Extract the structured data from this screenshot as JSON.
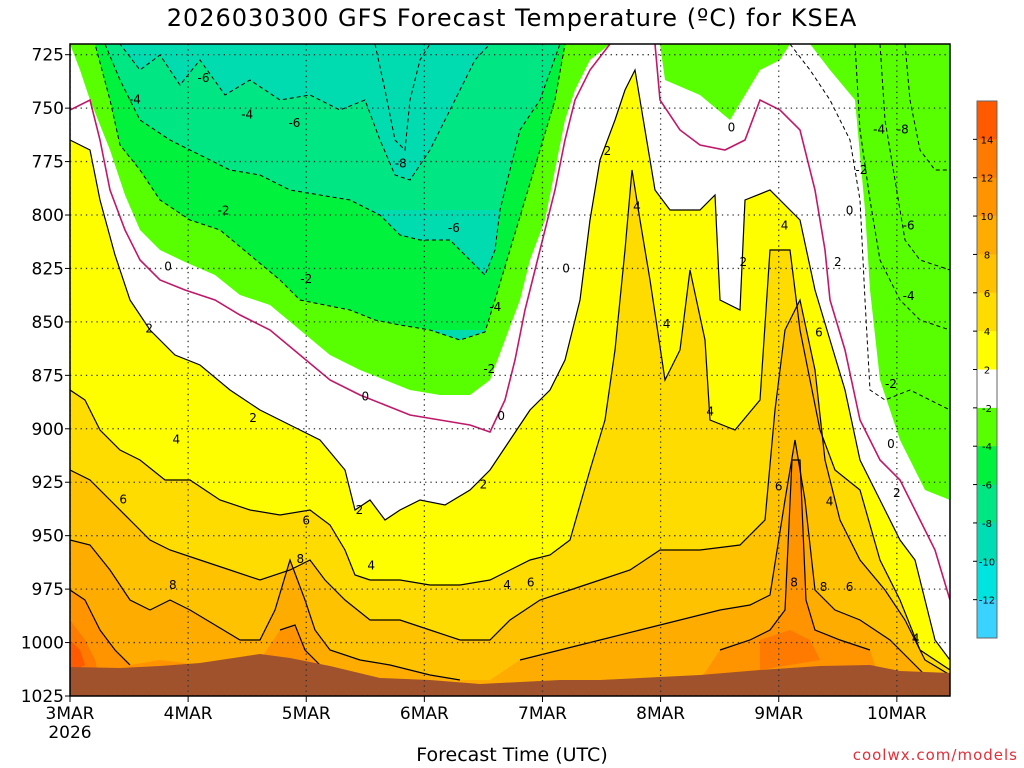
{
  "title": "2026030300 GFS Forecast Temperature (ºC) for KSEA",
  "xlabel": "Forecast Time (UTC)",
  "credit": "coolwx.com/models",
  "chart_data": {
    "type": "heatmap",
    "y_axis": {
      "ticks": [
        725,
        750,
        775,
        800,
        825,
        850,
        875,
        900,
        925,
        950,
        975,
        1000,
        1025
      ],
      "ylim": [
        1025,
        720
      ]
    },
    "x_axis": {
      "ticks": [
        "3MAR",
        "4MAR",
        "5MAR",
        "6MAR",
        "7MAR",
        "8MAR",
        "9MAR",
        "10MAR"
      ],
      "sub_label": "2026",
      "xlim": [
        0,
        7.45
      ]
    },
    "colorbar": {
      "labels": [
        14,
        12,
        10,
        8,
        6,
        4,
        2,
        -2,
        -4,
        -6,
        -8,
        -10,
        -12
      ],
      "colors": [
        "#ff5a00",
        "#ff7a00",
        "#ff9400",
        "#ffac00",
        "#ffc200",
        "#ffdc00",
        "#fffe00",
        "#ffffff",
        "#57ff00",
        "#00f23c",
        "#00e682",
        "#00ddb4",
        "#00e4e0",
        "#3ad2ff"
      ]
    },
    "contour_labels": [
      {
        "x": 0.55,
        "y": 746,
        "text": "-4"
      },
      {
        "x": 1.13,
        "y": 736,
        "text": "-6"
      },
      {
        "x": 1.5,
        "y": 753,
        "text": "-4"
      },
      {
        "x": 1.9,
        "y": 757,
        "text": "-6"
      },
      {
        "x": 2.8,
        "y": 776,
        "text": "-8"
      },
      {
        "x": 3.25,
        "y": 806,
        "text": "-6"
      },
      {
        "x": 1.3,
        "y": 798,
        "text": "-2"
      },
      {
        "x": 2.0,
        "y": 830,
        "text": "-2"
      },
      {
        "x": 3.6,
        "y": 843,
        "text": "-4"
      },
      {
        "x": 3.55,
        "y": 872,
        "text": "-2"
      },
      {
        "x": 0.83,
        "y": 824,
        "text": "0"
      },
      {
        "x": 2.5,
        "y": 885,
        "text": "0"
      },
      {
        "x": 3.65,
        "y": 894,
        "text": "0"
      },
      {
        "x": 4.2,
        "y": 825,
        "text": "0"
      },
      {
        "x": 5.6,
        "y": 759,
        "text": "0"
      },
      {
        "x": 6.6,
        "y": 798,
        "text": "0"
      },
      {
        "x": 6.85,
        "y": 760,
        "text": "-4"
      },
      {
        "x": 7.05,
        "y": 760,
        "text": "-8"
      },
      {
        "x": 6.7,
        "y": 779,
        "text": "-2"
      },
      {
        "x": 7.1,
        "y": 805,
        "text": "-6"
      },
      {
        "x": 7.1,
        "y": 838,
        "text": "-4"
      },
      {
        "x": 6.95,
        "y": 879,
        "text": "-2"
      },
      {
        "x": 6.95,
        "y": 907,
        "text": "0"
      },
      {
        "x": 0.67,
        "y": 853,
        "text": "2"
      },
      {
        "x": 1.55,
        "y": 895,
        "text": "2"
      },
      {
        "x": 2.45,
        "y": 938,
        "text": "2"
      },
      {
        "x": 3.5,
        "y": 926,
        "text": "2"
      },
      {
        "x": 4.55,
        "y": 770,
        "text": "2"
      },
      {
        "x": 5.7,
        "y": 822,
        "text": "2"
      },
      {
        "x": 6.5,
        "y": 822,
        "text": "2"
      },
      {
        "x": 7.0,
        "y": 930,
        "text": "2"
      },
      {
        "x": 0.9,
        "y": 905,
        "text": "4"
      },
      {
        "x": 2.55,
        "y": 964,
        "text": "4"
      },
      {
        "x": 3.7,
        "y": 973,
        "text": "4"
      },
      {
        "x": 4.8,
        "y": 796,
        "text": "4"
      },
      {
        "x": 5.05,
        "y": 851,
        "text": "4"
      },
      {
        "x": 5.42,
        "y": 892,
        "text": "4"
      },
      {
        "x": 6.05,
        "y": 805,
        "text": "4"
      },
      {
        "x": 6.43,
        "y": 934,
        "text": "4"
      },
      {
        "x": 7.16,
        "y": 998,
        "text": "4"
      },
      {
        "x": 0.45,
        "y": 933,
        "text": "6"
      },
      {
        "x": 2.0,
        "y": 943,
        "text": "6"
      },
      {
        "x": 3.9,
        "y": 972,
        "text": "6"
      },
      {
        "x": 6.34,
        "y": 855,
        "text": "6"
      },
      {
        "x": 6.0,
        "y": 927,
        "text": "6"
      },
      {
        "x": 6.6,
        "y": 974,
        "text": "6"
      },
      {
        "x": 0.87,
        "y": 973,
        "text": "8"
      },
      {
        "x": 1.95,
        "y": 961,
        "text": "8"
      },
      {
        "x": 6.13,
        "y": 972,
        "text": "8"
      },
      {
        "x": 6.38,
        "y": 974,
        "text": "8"
      }
    ]
  }
}
